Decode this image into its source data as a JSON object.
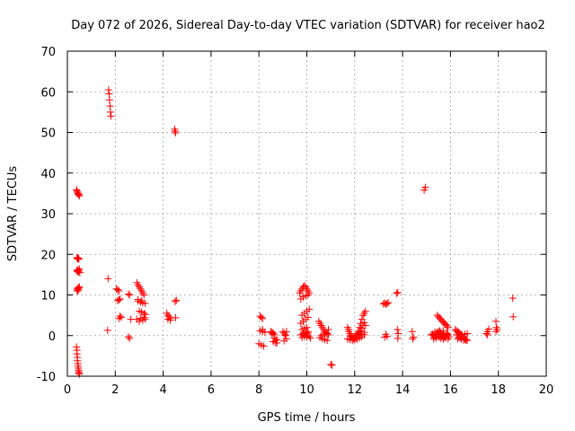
{
  "chart_data": {
    "type": "scatter",
    "title": "Day 072 of 2026, Sidereal Day-to-day VTEC variation (SDTVAR) for receiver hao2",
    "xlabel": "GPS time / hours",
    "ylabel": "SDTVAR / TECUs",
    "xlim": [
      0,
      20
    ],
    "ylim": [
      -10,
      70
    ],
    "xticks": [
      0,
      2,
      4,
      6,
      8,
      10,
      12,
      14,
      16,
      18,
      20
    ],
    "yticks": [
      -10,
      0,
      10,
      20,
      30,
      40,
      50,
      60,
      70
    ],
    "grid": true,
    "marker": "+",
    "color": "#ff0000",
    "series": [
      {
        "name": "SDTVAR",
        "x": [
          0.38,
          0.4,
          0.42,
          0.44,
          0.46,
          0.48,
          0.5,
          0.4,
          0.42,
          0.44,
          0.46,
          0.48,
          0.5,
          0.52,
          0.4,
          0.42,
          0.44,
          0.46,
          0.48,
          0.5,
          0.4,
          0.42,
          0.44,
          0.46,
          0.48,
          0.42,
          0.38,
          0.4,
          0.4,
          0.42,
          0.42,
          0.44,
          0.44,
          0.46,
          0.46,
          0.48,
          0.48,
          0.5,
          1.72,
          1.74,
          1.76,
          1.78,
          1.8,
          1.82,
          1.7,
          1.68,
          2.05,
          2.1,
          2.15,
          2.2,
          2.15,
          2.1,
          2.2,
          2.25,
          2.15,
          2.55,
          2.6,
          2.65,
          2.55,
          2.6,
          2.9,
          2.95,
          3.0,
          3.05,
          3.1,
          3.15,
          3.2,
          2.95,
          3.05,
          3.15,
          3.0,
          3.1,
          3.2,
          3.25,
          2.9,
          3.05,
          3.2,
          3.0,
          3.15,
          3.25,
          2.95,
          3.1,
          3.25,
          4.15,
          4.2,
          4.25,
          4.3,
          4.2,
          4.3,
          4.48,
          4.5,
          4.52,
          4.5,
          4.55,
          4.52,
          8.05,
          8.1,
          8.15,
          8.15,
          8.0,
          8.1,
          8.2,
          8.05,
          8.15,
          8.25,
          8.5,
          8.55,
          8.6,
          8.65,
          8.7,
          8.75,
          8.55,
          8.65,
          8.75,
          8.6,
          8.7,
          9.0,
          9.05,
          9.1,
          9.15,
          9.05,
          9.15,
          9.1,
          9.7,
          9.75,
          9.8,
          9.85,
          9.9,
          9.95,
          10.0,
          10.05,
          10.1,
          9.75,
          9.85,
          9.95,
          10.05,
          9.8,
          9.9,
          10.0,
          10.1,
          9.75,
          9.85,
          9.95,
          10.05,
          9.8,
          9.9,
          10.0,
          9.85,
          9.95,
          10.05,
          9.9,
          10.0,
          9.75,
          9.8,
          9.85,
          9.9,
          9.95,
          10.0,
          10.05,
          10.1,
          10.15,
          10.5,
          10.55,
          10.6,
          10.65,
          10.7,
          10.75,
          10.8,
          10.85,
          10.9,
          10.55,
          10.65,
          10.75,
          10.85,
          10.6,
          10.7,
          10.8,
          10.9,
          11.0,
          11.05,
          11.7,
          11.75,
          11.8,
          11.85,
          11.9,
          11.95,
          12.0,
          12.05,
          12.1,
          12.15,
          12.2,
          12.25,
          12.3,
          12.35,
          12.4,
          12.45,
          11.75,
          11.85,
          11.95,
          12.05,
          12.15,
          12.25,
          12.35,
          11.8,
          11.9,
          12.0,
          12.1,
          12.2,
          12.3,
          12.4,
          11.7,
          11.8,
          11.9,
          12.0,
          12.1,
          12.2,
          12.3,
          12.4,
          12.1,
          12.2,
          12.3,
          12.4,
          12.45,
          13.2,
          13.25,
          13.3,
          13.35,
          13.4,
          13.3,
          13.25,
          13.35,
          13.75,
          13.8,
          13.78,
          13.82,
          13.8,
          14.4,
          14.45,
          14.42,
          14.9,
          14.95,
          15.2,
          15.25,
          15.3,
          15.35,
          15.4,
          15.45,
          15.5,
          15.55,
          15.6,
          15.65,
          15.7,
          15.75,
          15.8,
          15.85,
          15.9,
          15.95,
          15.3,
          15.4,
          15.5,
          15.6,
          15.7,
          15.8,
          15.9,
          15.35,
          15.45,
          15.55,
          15.65,
          15.75,
          15.85,
          15.45,
          15.5,
          15.55,
          15.6,
          15.65,
          15.7,
          15.75,
          15.8,
          15.85,
          15.9,
          15.6,
          15.7,
          16.2,
          16.25,
          16.3,
          16.35,
          16.4,
          16.45,
          16.5,
          16.55,
          16.6,
          16.65,
          16.7,
          16.3,
          16.4,
          16.5,
          16.6,
          16.7,
          16.35,
          16.45,
          16.55,
          16.65,
          16.25,
          16.35,
          16.45,
          16.55,
          17.5,
          17.55,
          17.6,
          17.55,
          17.9,
          17.92,
          17.95,
          17.9,
          18.6,
          18.62
        ]
      }
    ]
  }
}
